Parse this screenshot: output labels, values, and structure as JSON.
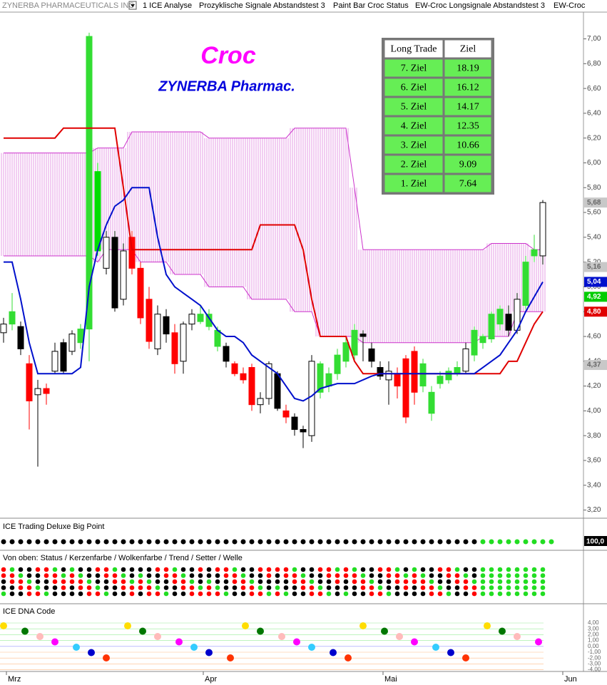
{
  "header": {
    "tabs": [
      "ZYNERBA PHARMACEUTICALS INC",
      "1 ICE Analyse",
      "Prozyklische Signale Abstandstest 3",
      "Paint Bar Croc Status",
      "EW-Croc Longsignale Abstandstest 3",
      "EW-Croc"
    ]
  },
  "chart_data": {
    "type": "candlestick",
    "title": "Croc",
    "subtitle": "ZYNERBA Pharmac.",
    "categories": [
      null,
      "Mrz",
      null,
      null,
      null,
      null,
      null,
      null,
      null,
      null,
      null,
      null,
      null,
      null,
      null,
      null,
      null,
      null,
      null,
      null,
      null,
      null,
      null,
      null,
      "Apr",
      null,
      null,
      null,
      null,
      null,
      null,
      null,
      null,
      null,
      null,
      null,
      null,
      null,
      null,
      null,
      null,
      null,
      null,
      null,
      null,
      "Mai",
      null,
      null,
      null,
      null,
      null,
      null,
      null,
      null,
      null,
      null,
      null,
      null,
      null,
      null,
      null,
      null,
      null,
      null,
      null,
      null,
      "Jun"
    ],
    "open": [
      4.63,
      4.7,
      4.68,
      4.38,
      4.13,
      4.18,
      4.32,
      4.55,
      4.48,
      4.55,
      4.66,
      5.93,
      5.15,
      5.4,
      4.9,
      5.4,
      5.15,
      4.9,
      4.5,
      4.76,
      4.63,
      4.4,
      4.7,
      4.72,
      4.78,
      4.65,
      4.52,
      4.38,
      4.3,
      4.35,
      4.05,
      4.1,
      4.3,
      4.0,
      3.95,
      3.85,
      3.8,
      4.15,
      4.2,
      4.3,
      4.4,
      4.45,
      4.62,
      4.5,
      4.35,
      4.25,
      4.3,
      4.42,
      4.48,
      4.2,
      3.98,
      4.22,
      4.25,
      4.3,
      4.32,
      4.45,
      4.55,
      4.58,
      4.7,
      4.78,
      4.65,
      4.85,
      5.25,
      5.25,
      null,
      null,
      null
    ],
    "high": [
      4.75,
      4.95,
      4.72,
      4.45,
      4.25,
      4.22,
      4.55,
      4.58,
      4.65,
      4.7,
      7.05,
      6.0,
      5.45,
      5.45,
      5.35,
      5.45,
      5.2,
      5.0,
      4.85,
      4.82,
      4.7,
      4.72,
      4.82,
      4.85,
      4.82,
      4.68,
      4.55,
      4.4,
      4.35,
      4.38,
      4.15,
      4.4,
      4.32,
      4.05,
      3.98,
      3.88,
      4.45,
      4.4,
      4.35,
      4.5,
      4.6,
      4.7,
      4.65,
      4.55,
      4.4,
      4.4,
      4.35,
      4.45,
      4.52,
      4.42,
      4.2,
      4.32,
      4.35,
      4.4,
      4.55,
      4.68,
      4.62,
      4.8,
      4.85,
      4.85,
      4.95,
      5.25,
      5.42,
      5.7,
      null,
      null,
      null
    ],
    "low": [
      4.55,
      4.65,
      4.45,
      3.85,
      3.55,
      4.05,
      4.3,
      4.3,
      4.45,
      4.5,
      4.4,
      5.25,
      5.1,
      4.8,
      4.85,
      5.1,
      4.7,
      4.5,
      4.45,
      4.55,
      4.3,
      4.3,
      4.65,
      4.7,
      4.65,
      4.48,
      4.35,
      4.28,
      4.22,
      4.0,
      3.98,
      4.05,
      4.0,
      3.9,
      3.8,
      3.7,
      3.75,
      4.1,
      4.15,
      4.25,
      4.35,
      4.4,
      4.4,
      4.35,
      4.25,
      4.05,
      4.1,
      3.9,
      4.05,
      4.15,
      3.92,
      4.18,
      4.22,
      4.28,
      4.3,
      4.4,
      4.5,
      4.55,
      4.65,
      4.6,
      4.62,
      4.82,
      5.2,
      5.18,
      null,
      null,
      null
    ],
    "close": [
      4.7,
      4.8,
      4.5,
      4.08,
      4.18,
      4.14,
      4.48,
      4.32,
      4.62,
      4.66,
      7.02,
      5.29,
      5.4,
      4.83,
      5.29,
      5.15,
      4.75,
      4.56,
      4.78,
      4.62,
      4.38,
      4.7,
      4.78,
      4.78,
      4.68,
      4.52,
      4.4,
      4.3,
      4.25,
      4.05,
      4.1,
      4.38,
      4.02,
      3.95,
      3.85,
      3.83,
      4.4,
      4.38,
      4.3,
      4.45,
      4.55,
      4.65,
      4.6,
      4.4,
      4.28,
      4.32,
      4.2,
      3.95,
      4.15,
      4.38,
      4.15,
      4.28,
      4.32,
      4.35,
      4.5,
      4.65,
      4.6,
      4.78,
      4.82,
      4.65,
      4.9,
      5.2,
      5.3,
      5.68,
      null,
      null,
      null
    ],
    "candle_colors": [
      "#ffffff",
      "#33dd33",
      "#000000",
      "#ff0000",
      "#ffffff",
      "#ff0000",
      "#ffffff",
      "#000000",
      "#ffffff",
      "#33dd33",
      "#33dd33",
      "#00dd00",
      "#ffffff",
      "#000000",
      "#ffffff",
      "#ff0000",
      "#ff0000",
      "#ff0000",
      "#ffffff",
      "#000000",
      "#ff0000",
      "#ffffff",
      "#ffffff",
      "#33dd33",
      "#33dd33",
      "#33dd33",
      "#000000",
      "#ff0000",
      "#ff0000",
      "#ff0000",
      "#ffffff",
      "#ffffff",
      "#000000",
      "#ff0000",
      "#000000",
      "#000000",
      "#ffffff",
      "#33dd33",
      "#33dd33",
      "#33dd33",
      "#33dd33",
      "#33dd33",
      "#000000",
      "#000000",
      "#000000",
      "#ffffff",
      "#ff0000",
      "#ff0000",
      "#ff0000",
      "#33dd33",
      "#33dd33",
      "#33dd33",
      "#33dd33",
      "#33dd33",
      "#ffffff",
      "#33dd33",
      "#33dd33",
      "#33dd33",
      "#33dd33",
      "#000000",
      "#ffffff",
      "#33dd33",
      "#33dd33",
      "#ffffff",
      null,
      null,
      null
    ],
    "cloud": {
      "color": "#cc33cc",
      "upper": [
        6.08,
        6.08,
        6.08,
        6.08,
        6.08,
        6.08,
        6.08,
        6.08,
        6.08,
        6.08,
        6.08,
        6.12,
        6.12,
        6.12,
        6.12,
        6.25,
        6.25,
        6.25,
        6.25,
        6.25,
        6.25,
        6.25,
        6.25,
        6.25,
        6.2,
        6.2,
        6.2,
        6.2,
        6.2,
        6.2,
        6.2,
        6.2,
        6.2,
        6.2,
        6.28,
        6.28,
        6.28,
        6.28,
        6.28,
        6.28,
        6.28,
        5.8,
        5.3,
        5.3,
        5.3,
        5.3,
        5.3,
        5.3,
        5.3,
        5.3,
        5.3,
        5.3,
        5.3,
        5.3,
        5.3,
        5.3,
        5.3,
        5.35,
        5.35,
        5.35,
        5.35,
        5.35,
        5.3,
        5.3,
        null,
        null,
        null
      ],
      "lower": [
        5.25,
        5.25,
        5.25,
        5.25,
        5.25,
        5.25,
        5.25,
        5.25,
        5.25,
        5.25,
        5.25,
        5.2,
        5.3,
        5.3,
        5.3,
        5.3,
        5.2,
        5.2,
        5.2,
        5.2,
        5.1,
        5.1,
        5.1,
        5.1,
        5.0,
        5.0,
        5.0,
        5.0,
        5.0,
        4.9,
        4.9,
        4.9,
        4.9,
        4.9,
        4.8,
        4.8,
        4.8,
        4.6,
        4.6,
        4.6,
        4.6,
        4.6,
        4.55,
        4.55,
        4.55,
        4.55,
        4.55,
        4.55,
        4.55,
        4.55,
        4.55,
        4.55,
        4.55,
        4.55,
        4.55,
        4.55,
        4.6,
        4.6,
        4.6,
        4.6,
        4.8,
        4.8,
        4.8,
        4.8,
        null,
        null,
        null
      ]
    },
    "series": [
      {
        "color": "#e00000",
        "values": [
          6.2,
          6.2,
          6.2,
          6.2,
          6.2,
          6.2,
          6.2,
          6.28,
          6.28,
          6.28,
          6.28,
          6.28,
          6.28,
          6.28,
          5.8,
          5.3,
          5.3,
          5.3,
          5.3,
          5.3,
          5.3,
          5.3,
          5.3,
          5.3,
          5.3,
          5.3,
          5.3,
          5.3,
          5.3,
          5.3,
          5.5,
          5.5,
          5.5,
          5.5,
          5.5,
          5.3,
          4.9,
          4.6,
          4.6,
          4.6,
          4.6,
          4.4,
          4.3,
          4.3,
          4.3,
          4.3,
          4.3,
          4.3,
          4.3,
          4.3,
          4.3,
          4.3,
          4.3,
          4.3,
          4.3,
          4.3,
          4.3,
          4.3,
          4.3,
          4.4,
          4.4,
          4.55,
          4.7,
          4.8,
          null,
          null,
          null
        ]
      },
      {
        "color": "#0010cc",
        "values": [
          5.2,
          5.2,
          4.9,
          4.55,
          4.3,
          4.3,
          4.3,
          4.3,
          4.3,
          4.35,
          5.0,
          5.3,
          5.5,
          5.65,
          5.7,
          5.8,
          5.8,
          5.8,
          5.4,
          5.1,
          5.0,
          4.95,
          4.9,
          4.85,
          4.75,
          4.65,
          4.6,
          4.6,
          4.55,
          4.45,
          4.4,
          4.35,
          4.3,
          4.2,
          4.1,
          4.08,
          4.12,
          4.18,
          4.2,
          4.22,
          4.22,
          4.22,
          4.25,
          4.28,
          4.3,
          4.3,
          4.3,
          4.3,
          4.3,
          4.3,
          4.3,
          4.3,
          4.3,
          4.3,
          4.3,
          4.3,
          4.35,
          4.4,
          4.45,
          4.55,
          4.65,
          4.8,
          4.92,
          5.04,
          null,
          null,
          null
        ]
      }
    ],
    "ylim": [
      3.14,
      7.21
    ],
    "yticks": [
      {
        "value": 3.2,
        "label": "3,20"
      },
      {
        "value": 3.4,
        "label": "3,40"
      },
      {
        "value": 3.6,
        "label": "3,60"
      },
      {
        "value": 3.8,
        "label": "3,80"
      },
      {
        "value": 4.0,
        "label": "4,00"
      },
      {
        "value": 4.2,
        "label": "4,20"
      },
      {
        "value": 4.4,
        "label": "4,40"
      },
      {
        "value": 4.6,
        "label": "4,60"
      },
      {
        "value": 4.8,
        "label": "4,80"
      },
      {
        "value": 5.0,
        "label": "5,00"
      },
      {
        "value": 5.2,
        "label": "5,20"
      },
      {
        "value": 5.4,
        "label": "5,40"
      },
      {
        "value": 5.6,
        "label": "5,60"
      },
      {
        "value": 5.8,
        "label": "5,80"
      },
      {
        "value": 6.0,
        "label": "6,00"
      },
      {
        "value": 6.2,
        "label": "6,20"
      },
      {
        "value": 6.4,
        "label": "6,40"
      },
      {
        "value": 6.6,
        "label": "6,60"
      },
      {
        "value": 6.8,
        "label": "6,80"
      },
      {
        "value": 7.0,
        "label": "7,00"
      }
    ],
    "price_tags": [
      {
        "value": 5.68,
        "label": "5,68",
        "color": "#c8c8c8"
      },
      {
        "value": 5.16,
        "label": "5,16",
        "color": "#c8c8c8"
      },
      {
        "value": 5.04,
        "label": "5,04",
        "color": "#0010cc"
      },
      {
        "value": 4.92,
        "label": "4,92",
        "color": "#00cc00"
      },
      {
        "value": 4.8,
        "label": "4,80",
        "color": "#e00000"
      },
      {
        "value": 4.37,
        "label": "4,37",
        "color": "#c8c8c8"
      }
    ]
  },
  "table": {
    "header": [
      "Long Trade",
      "Ziel"
    ],
    "rows": [
      [
        "7. Ziel",
        "18.19"
      ],
      [
        "6. Ziel",
        "16.12"
      ],
      [
        "5. Ziel",
        "14.17"
      ],
      [
        "4. Ziel",
        "12.35"
      ],
      [
        "3. Ziel",
        "10.66"
      ],
      [
        "2. Ziel",
        "9.09"
      ],
      [
        "1. Ziel",
        "7.64"
      ]
    ]
  },
  "panels": {
    "big_point": {
      "title": "ICE Trading Deluxe Big Point",
      "tag": "100,0"
    },
    "status": {
      "title": "Von oben: Status / Kerzenfarbe / Wolkenfarbe / Trend / Setter / Welle"
    },
    "dna": {
      "title": "ICE DNA Code",
      "labels": [
        "4,00",
        "3,00",
        "2,00",
        "1,00",
        "0,00",
        "-1,00",
        "-2,00",
        "-3,00",
        "-4,00"
      ]
    }
  }
}
